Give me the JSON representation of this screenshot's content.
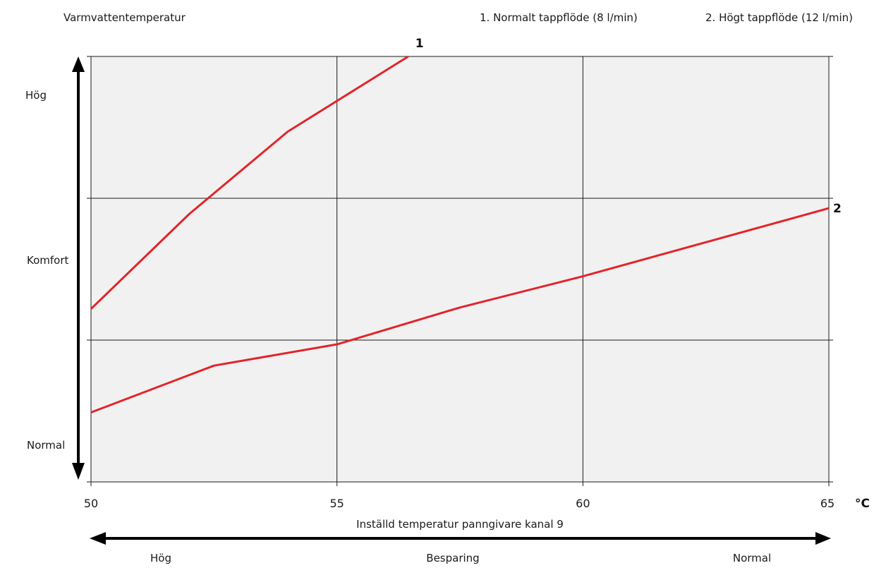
{
  "chart_data": {
    "type": "line",
    "ylabel": "Varmvattentemperatur",
    "xlabel": "Inställd temperatur panngivare kanal 9",
    "x_unit": "°C",
    "xlim": [
      50,
      65
    ],
    "ylim": [
      0,
      3
    ],
    "x_ticks": [
      "50",
      "55",
      "60",
      "65"
    ],
    "y_level_labels": [
      "Normal",
      "Komfort",
      "Hög"
    ],
    "legend": [
      "1. Normalt tappflöde (8 l/min)",
      "2. Högt tappflöde (12 l/min)"
    ],
    "legend_position": "top-right",
    "grid": true,
    "bottom_arrow_labels": [
      "Hög",
      "Besparing",
      "Normal"
    ],
    "series": [
      {
        "label": "1",
        "color": "#e3232a",
        "points": [
          [
            50,
            1.22
          ],
          [
            52,
            1.89
          ],
          [
            54,
            2.47
          ],
          [
            56.45,
            3.0
          ]
        ]
      },
      {
        "label": "2",
        "color": "#e3232a",
        "points": [
          [
            50,
            0.49
          ],
          [
            52.5,
            0.82
          ],
          [
            55,
            0.97
          ],
          [
            57.5,
            1.23
          ],
          [
            60,
            1.45
          ],
          [
            62.5,
            1.69
          ],
          [
            65,
            1.93
          ]
        ]
      }
    ]
  }
}
